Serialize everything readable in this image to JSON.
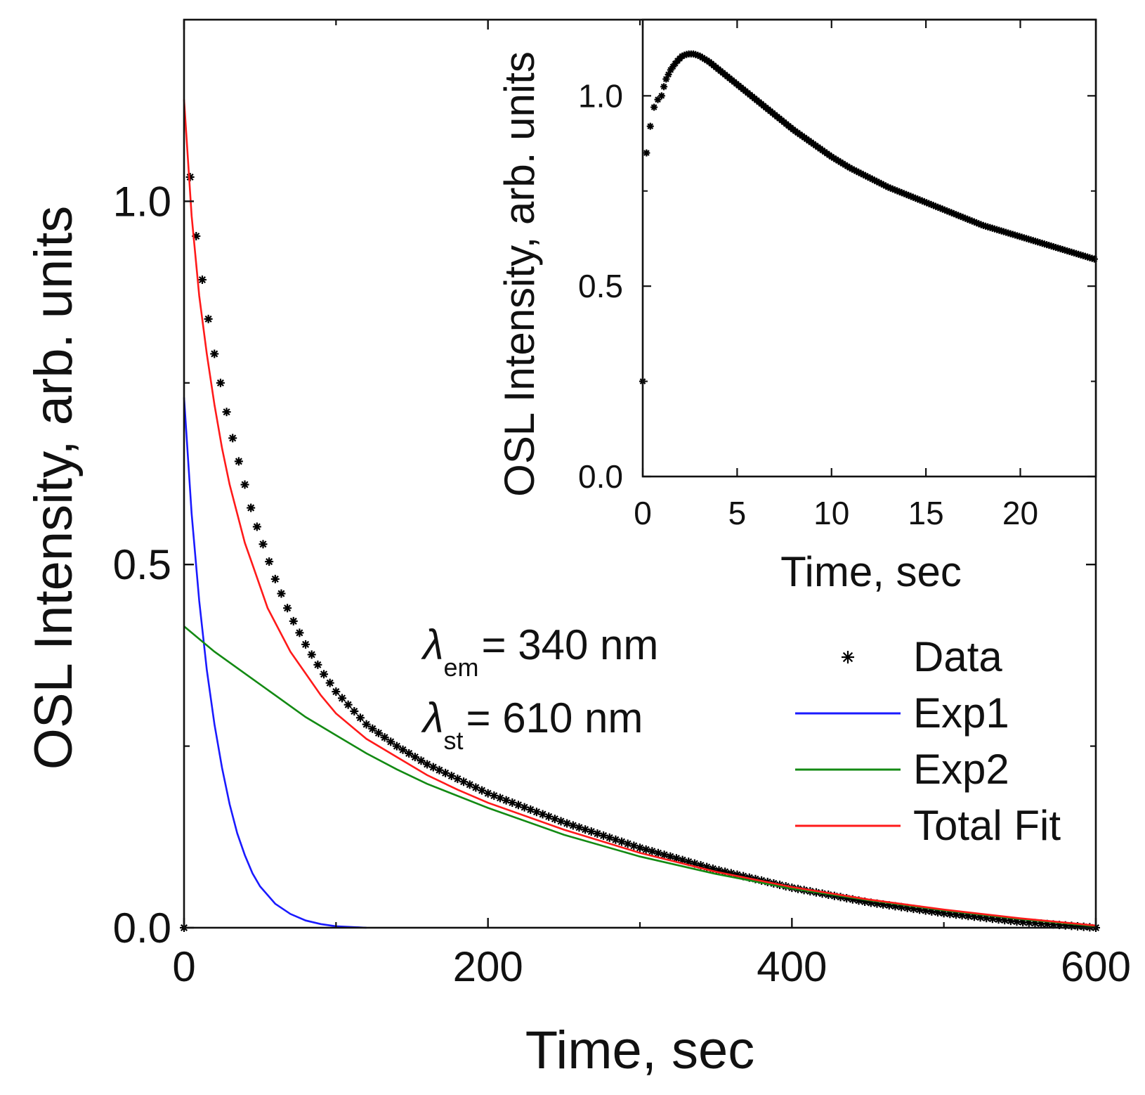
{
  "chart_data": [
    {
      "type": "line",
      "role": "main",
      "xlabel": "Time, sec",
      "ylabel": "OSL Intensity, arb. units",
      "xlim": [
        0,
        600
      ],
      "ylim": [
        0,
        1.25
      ],
      "x_ticks": [
        0,
        200,
        400,
        600
      ],
      "x_minor_ticks": [
        100,
        300,
        500
      ],
      "y_ticks": [
        0.0,
        0.5,
        1.0
      ],
      "y_minor_ticks": [
        0.25,
        0.75
      ],
      "x_tick_labels": [
        "0",
        "200",
        "400",
        "600"
      ],
      "y_tick_labels": [
        "0.0",
        "0.5",
        "1.0"
      ],
      "grid": false,
      "legend_position": "bottom-right",
      "annotations": [
        {
          "symbol": "λ",
          "subscript": "em",
          "text": "= 340 nm"
        },
        {
          "symbol": "λ",
          "subscript": "st",
          "text": "= 610 nm"
        }
      ],
      "series": [
        {
          "name": "Data",
          "kind": "markers",
          "marker": "asterisk",
          "color": "#000000",
          "x": [
            0,
            2,
            5,
            10,
            15,
            20,
            25,
            30,
            35,
            40,
            45,
            50,
            55,
            60,
            70,
            80,
            90,
            100,
            120,
            140,
            160,
            180,
            200,
            250,
            300,
            350,
            400,
            450,
            500,
            550,
            600
          ],
          "y": [
            0.0,
            1.1,
            1.0,
            0.92,
            0.85,
            0.79,
            0.74,
            0.69,
            0.65,
            0.61,
            0.57,
            0.54,
            0.51,
            0.48,
            0.43,
            0.39,
            0.355,
            0.325,
            0.28,
            0.25,
            0.225,
            0.205,
            0.185,
            0.145,
            0.11,
            0.08,
            0.055,
            0.035,
            0.02,
            0.008,
            0.0
          ]
        },
        {
          "name": "Exp1",
          "kind": "line",
          "color": "#1a1aff",
          "x": [
            0,
            5,
            10,
            15,
            20,
            25,
            30,
            35,
            40,
            45,
            50,
            60,
            70,
            80,
            90,
            100,
            120
          ],
          "y": [
            0.73,
            0.57,
            0.45,
            0.355,
            0.28,
            0.22,
            0.17,
            0.13,
            0.1,
            0.075,
            0.057,
            0.033,
            0.019,
            0.01,
            0.005,
            0.002,
            0.0
          ]
        },
        {
          "name": "Exp2",
          "kind": "line",
          "color": "#138a13",
          "x": [
            0,
            20,
            40,
            60,
            80,
            100,
            120,
            140,
            160,
            200,
            250,
            300,
            350,
            400,
            450,
            500,
            550,
            600
          ],
          "y": [
            0.415,
            0.38,
            0.35,
            0.32,
            0.29,
            0.265,
            0.24,
            0.218,
            0.198,
            0.165,
            0.128,
            0.098,
            0.074,
            0.054,
            0.038,
            0.024,
            0.012,
            0.002
          ]
        },
        {
          "name": "Total Fit",
          "kind": "line",
          "color": "#ff1a1a",
          "x": [
            0,
            5,
            10,
            15,
            20,
            25,
            30,
            35,
            40,
            45,
            50,
            55,
            60,
            70,
            80,
            90,
            100,
            120,
            140,
            160,
            180,
            200,
            250,
            300,
            350,
            400,
            450,
            500,
            550,
            600
          ],
          "y": [
            1.14,
            0.98,
            0.87,
            0.79,
            0.72,
            0.66,
            0.61,
            0.57,
            0.53,
            0.5,
            0.47,
            0.44,
            0.42,
            0.38,
            0.35,
            0.32,
            0.295,
            0.26,
            0.235,
            0.21,
            0.19,
            0.172,
            0.135,
            0.103,
            0.077,
            0.056,
            0.039,
            0.025,
            0.013,
            0.003
          ]
        }
      ]
    },
    {
      "type": "scatter",
      "role": "inset",
      "xlabel": "Time, sec",
      "ylabel": "OSL Intensity, arb. units",
      "xlim": [
        0,
        24
      ],
      "ylim": [
        0,
        1.2
      ],
      "x_ticks": [
        0,
        5,
        10,
        15,
        20
      ],
      "x_tick_labels": [
        "0",
        "5",
        "10",
        "15",
        "20"
      ],
      "y_ticks": [
        0.0,
        0.5,
        1.0
      ],
      "y_minor_ticks": [
        0.25,
        0.75
      ],
      "y_tick_labels": [
        "0.0",
        "0.5",
        "1.0"
      ],
      "grid": false,
      "series": [
        {
          "name": "Data",
          "marker": "asterisk",
          "color": "#000000",
          "x": [
            0,
            0.2,
            0.4,
            0.6,
            0.8,
            1.0,
            1.2,
            1.5,
            1.8,
            2.1,
            2.4,
            2.7,
            3.0,
            3.5,
            4,
            5,
            6,
            7,
            8,
            9,
            10,
            11,
            12,
            13,
            14,
            15,
            16,
            17,
            18,
            19,
            20,
            21,
            22,
            23,
            24
          ],
          "y": [
            0.25,
            0.85,
            0.92,
            0.97,
            0.99,
            1.0,
            1.04,
            1.07,
            1.09,
            1.105,
            1.11,
            1.11,
            1.105,
            1.09,
            1.07,
            1.03,
            0.99,
            0.95,
            0.91,
            0.875,
            0.84,
            0.81,
            0.785,
            0.76,
            0.74,
            0.72,
            0.7,
            0.68,
            0.66,
            0.645,
            0.63,
            0.615,
            0.6,
            0.585,
            0.57
          ]
        }
      ]
    }
  ]
}
